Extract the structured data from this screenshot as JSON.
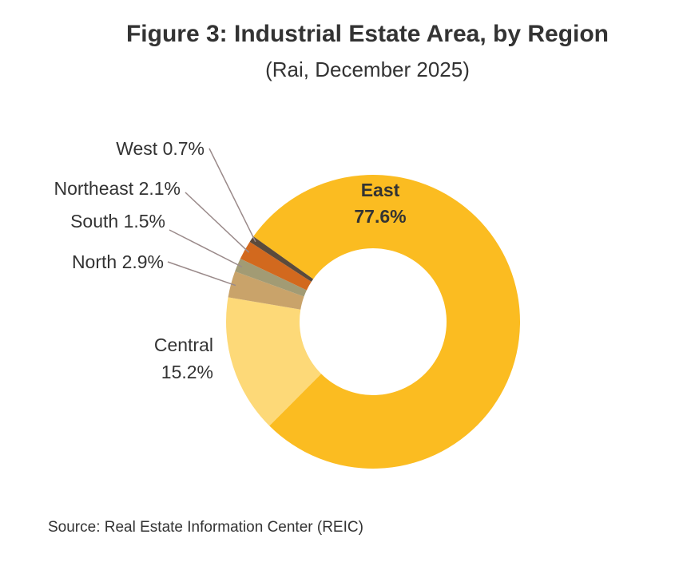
{
  "chart_data": {
    "type": "pie",
    "title": "Figure 3: Industrial Estate Area, by Region",
    "subtitle": "(Rai, December 2025)",
    "donut": true,
    "slices": [
      {
        "label": "East",
        "value": 77.6,
        "display": "77.6%",
        "color": "#FBBC21"
      },
      {
        "label": "Central",
        "value": 15.2,
        "display": "15.2%",
        "color": "#FDD978"
      },
      {
        "label": "North",
        "value": 2.9,
        "display": "2.9%",
        "color": "#C9A36A"
      },
      {
        "label": "South",
        "value": 1.5,
        "display": "1.5%",
        "color": "#A29B74"
      },
      {
        "label": "Northeast",
        "value": 2.1,
        "display": "2.1%",
        "color": "#D2691E"
      },
      {
        "label": "West",
        "value": 0.7,
        "display": "0.7%",
        "color": "#5A4A3C"
      }
    ]
  },
  "source": "Source: Real Estate Information Center (REIC)"
}
